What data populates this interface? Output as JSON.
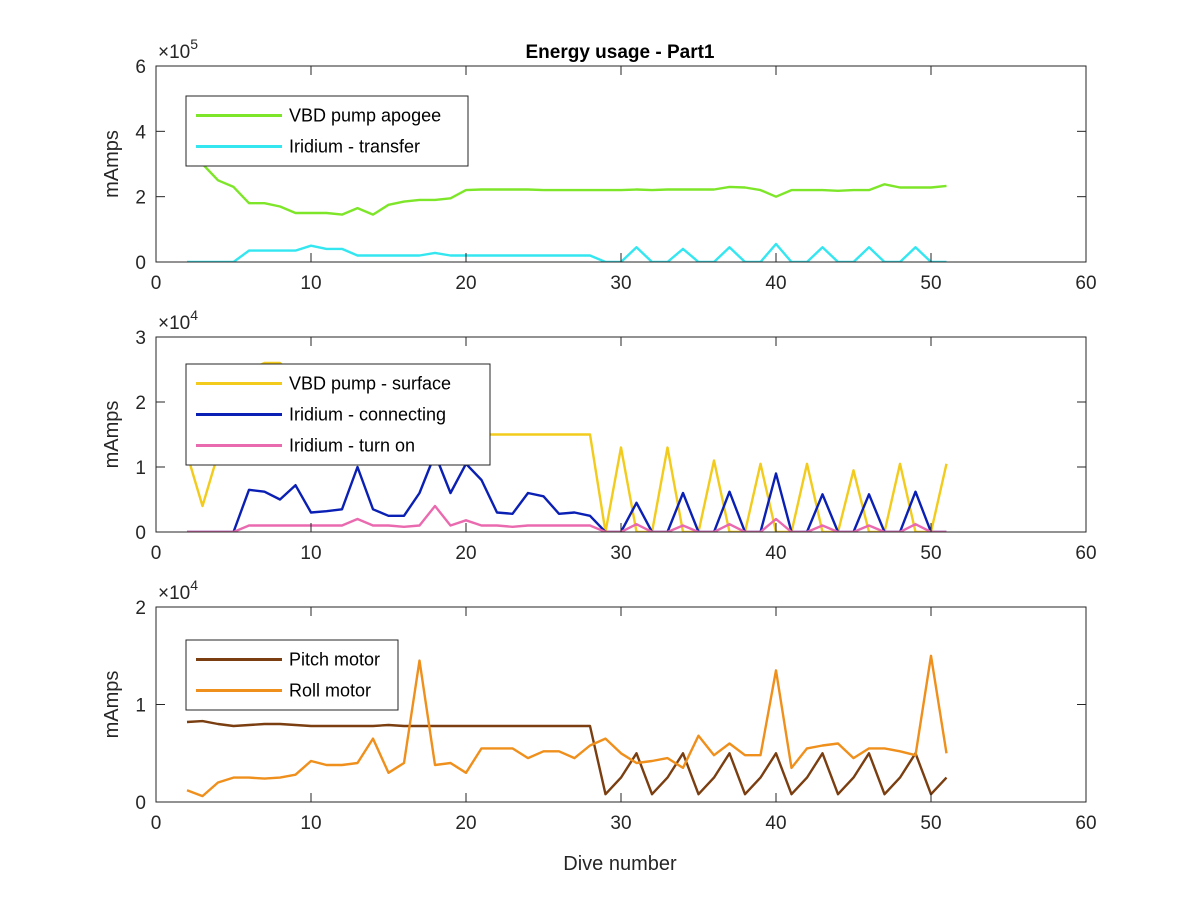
{
  "figure": {
    "title": "Energy usage - Part1",
    "xlabel": "Dive number"
  },
  "chart_data": [
    {
      "type": "line",
      "title": "Energy usage - Part1",
      "ylabel": "mAmps",
      "xlabel": "",
      "exponent_label": "×10",
      "exponent_power": "5",
      "scale": 100000,
      "xlim": [
        0,
        60
      ],
      "ylim": [
        0,
        600000
      ],
      "xticks": [
        0,
        10,
        20,
        30,
        40,
        50,
        60
      ],
      "yticks": [
        0,
        2,
        4,
        6
      ],
      "grid": false,
      "legend_position": "top-left",
      "series": [
        {
          "name": "VBD pump apogee",
          "color": "#7ee629",
          "x": [
            3,
            4,
            5,
            6,
            7,
            8,
            9,
            10,
            11,
            12,
            13,
            14,
            15,
            16,
            17,
            18,
            19,
            20,
            21,
            22,
            23,
            24,
            25,
            26,
            27,
            28,
            29,
            30,
            31,
            32,
            33,
            34,
            35,
            36,
            37,
            38,
            39,
            40,
            41,
            42,
            43,
            44,
            45,
            46,
            47,
            48,
            49,
            50,
            51
          ],
          "y": [
            300000,
            250000,
            230000,
            180000,
            180000,
            170000,
            150000,
            150000,
            150000,
            145000,
            165000,
            145000,
            175000,
            185000,
            190000,
            190000,
            195000,
            220000,
            222000,
            222000,
            222000,
            222000,
            220000,
            220000,
            220000,
            220000,
            220000,
            220000,
            222000,
            220000,
            222000,
            222000,
            222000,
            222000,
            230000,
            228000,
            220000,
            200000,
            220000,
            220000,
            220000,
            218000,
            220000,
            220000,
            238000,
            228000,
            228000,
            228000,
            233000
          ]
        },
        {
          "name": "Iridium - transfer",
          "color": "#33e6f0",
          "x": [
            2,
            3,
            4,
            5,
            6,
            7,
            8,
            9,
            10,
            11,
            12,
            13,
            14,
            15,
            16,
            17,
            18,
            19,
            20,
            21,
            22,
            23,
            24,
            25,
            26,
            27,
            28,
            29,
            30,
            31,
            32,
            33,
            34,
            35,
            36,
            37,
            38,
            39,
            40,
            41,
            42,
            43,
            44,
            45,
            46,
            47,
            48,
            49,
            50,
            51
          ],
          "y": [
            0,
            0,
            0,
            0,
            35000,
            35000,
            35000,
            35000,
            50000,
            40000,
            40000,
            20000,
            20000,
            20000,
            20000,
            20000,
            28000,
            20000,
            20000,
            20000,
            20000,
            20000,
            20000,
            20000,
            20000,
            20000,
            20000,
            0,
            0,
            45000,
            0,
            0,
            40000,
            0,
            0,
            45000,
            0,
            0,
            55000,
            0,
            0,
            45000,
            0,
            0,
            45000,
            0,
            0,
            45000,
            0,
            0
          ]
        }
      ]
    },
    {
      "type": "line",
      "title": "",
      "ylabel": "mAmps",
      "xlabel": "",
      "exponent_label": "×10",
      "exponent_power": "4",
      "scale": 10000,
      "xlim": [
        0,
        60
      ],
      "ylim": [
        0,
        30000
      ],
      "xticks": [
        0,
        10,
        20,
        30,
        40,
        50,
        60
      ],
      "yticks": [
        0,
        1,
        2,
        3
      ],
      "grid": false,
      "legend_position": "top-left",
      "series": [
        {
          "name": "VBD pump - surface",
          "color": "#f2cb1c",
          "x": [
            2,
            3,
            4,
            5,
            6,
            7,
            8,
            9,
            10,
            11,
            12,
            13,
            14,
            15,
            16,
            17,
            18,
            19,
            20,
            21,
            22,
            23,
            24,
            25,
            26,
            27,
            28,
            29,
            30,
            31,
            32,
            33,
            34,
            35,
            36,
            37,
            38,
            39,
            40,
            41,
            42,
            43,
            44,
            45,
            46,
            47,
            48,
            49,
            50,
            51
          ],
          "y": [
            12000,
            4000,
            12000,
            20000,
            25000,
            26000,
            26000,
            24000,
            20000,
            19000,
            18000,
            17000,
            16000,
            16000,
            15000,
            15000,
            15000,
            15000,
            15000,
            15000,
            15000,
            15000,
            15000,
            15000,
            15000,
            15000,
            15000,
            0,
            13000,
            0,
            0,
            13000,
            0,
            0,
            11000,
            0,
            0,
            10500,
            0,
            0,
            10500,
            0,
            0,
            9500,
            0,
            0,
            10500,
            0,
            0,
            10500
          ]
        },
        {
          "name": "Iridium - connecting",
          "color": "#0a1fb4",
          "x": [
            2,
            3,
            4,
            5,
            6,
            7,
            8,
            9,
            10,
            11,
            12,
            13,
            14,
            15,
            16,
            17,
            18,
            19,
            20,
            21,
            22,
            23,
            24,
            25,
            26,
            27,
            28,
            29,
            30,
            31,
            32,
            33,
            34,
            35,
            36,
            37,
            38,
            39,
            40,
            41,
            42,
            43,
            44,
            45,
            46,
            47,
            48,
            49,
            50,
            51
          ],
          "y": [
            0,
            0,
            0,
            0,
            6500,
            6200,
            5000,
            7200,
            3000,
            3200,
            3500,
            10000,
            3500,
            2500,
            2500,
            6000,
            12000,
            6000,
            10500,
            8000,
            3000,
            2800,
            6000,
            5500,
            2800,
            3000,
            2500,
            0,
            0,
            4500,
            0,
            0,
            6000,
            0,
            0,
            6200,
            0,
            0,
            9000,
            0,
            0,
            5800,
            0,
            0,
            5800,
            0,
            0,
            6200,
            0,
            0
          ]
        },
        {
          "name": "Iridium - turn on",
          "color": "#ea6aaf",
          "x": [
            2,
            3,
            4,
            5,
            6,
            7,
            8,
            9,
            10,
            11,
            12,
            13,
            14,
            15,
            16,
            17,
            18,
            19,
            20,
            21,
            22,
            23,
            24,
            25,
            26,
            27,
            28,
            29,
            30,
            31,
            32,
            33,
            34,
            35,
            36,
            37,
            38,
            39,
            40,
            41,
            42,
            43,
            44,
            45,
            46,
            47,
            48,
            49,
            50,
            51
          ],
          "y": [
            0,
            0,
            0,
            0,
            1000,
            1000,
            1000,
            1000,
            1000,
            1000,
            1000,
            2000,
            1000,
            1000,
            800,
            1000,
            4000,
            1000,
            1800,
            1000,
            1000,
            800,
            1000,
            1000,
            1000,
            1000,
            1000,
            0,
            0,
            1200,
            0,
            0,
            1000,
            0,
            0,
            1200,
            0,
            0,
            2000,
            0,
            0,
            1000,
            0,
            0,
            1000,
            0,
            0,
            1200,
            0,
            0
          ]
        }
      ]
    },
    {
      "type": "line",
      "title": "",
      "ylabel": "mAmps",
      "xlabel": "Dive number",
      "exponent_label": "×10",
      "exponent_power": "4",
      "scale": 10000,
      "xlim": [
        0,
        60
      ],
      "ylim": [
        0,
        20000
      ],
      "xticks": [
        0,
        10,
        20,
        30,
        40,
        50,
        60
      ],
      "yticks": [
        0,
        1,
        2
      ],
      "grid": false,
      "legend_position": "top-left",
      "series": [
        {
          "name": "Pitch motor",
          "color": "#7a3e10",
          "x": [
            2,
            3,
            4,
            5,
            6,
            7,
            8,
            9,
            10,
            11,
            12,
            13,
            14,
            15,
            16,
            17,
            18,
            19,
            20,
            21,
            22,
            23,
            24,
            25,
            26,
            27,
            28,
            29,
            30,
            31,
            32,
            33,
            34,
            35,
            36,
            37,
            38,
            39,
            40,
            41,
            42,
            43,
            44,
            45,
            46,
            47,
            48,
            49,
            50,
            51
          ],
          "y": [
            8200,
            8300,
            8000,
            7800,
            7900,
            8000,
            8000,
            7900,
            7800,
            7800,
            7800,
            7800,
            7800,
            7900,
            7800,
            7800,
            7800,
            7800,
            7800,
            7800,
            7800,
            7800,
            7800,
            7800,
            7800,
            7800,
            7800,
            800,
            2500,
            5000,
            800,
            2500,
            5000,
            800,
            2500,
            5000,
            800,
            2500,
            5000,
            800,
            2500,
            5000,
            800,
            2500,
            5000,
            800,
            2500,
            5000,
            800,
            2500
          ]
        },
        {
          "name": "Roll motor",
          "color": "#ef8f1c",
          "x": [
            2,
            3,
            4,
            5,
            6,
            7,
            8,
            9,
            10,
            11,
            12,
            13,
            14,
            15,
            16,
            17,
            18,
            19,
            20,
            21,
            22,
            23,
            24,
            25,
            26,
            27,
            28,
            29,
            30,
            31,
            32,
            33,
            34,
            35,
            36,
            37,
            38,
            39,
            40,
            41,
            42,
            43,
            44,
            45,
            46,
            47,
            48,
            49,
            50,
            51
          ],
          "y": [
            1200,
            600,
            2000,
            2500,
            2500,
            2400,
            2500,
            2800,
            4200,
            3800,
            3800,
            4000,
            6500,
            3000,
            4000,
            14500,
            3800,
            4000,
            3000,
            5500,
            5500,
            5500,
            4500,
            5200,
            5200,
            4500,
            5800,
            6500,
            5000,
            4000,
            4200,
            4500,
            3500,
            6800,
            4800,
            6000,
            4800,
            4800,
            13500,
            3500,
            5500,
            5800,
            6000,
            4500,
            5500,
            5500,
            5200,
            4800,
            15000,
            5000
          ]
        }
      ]
    }
  ]
}
